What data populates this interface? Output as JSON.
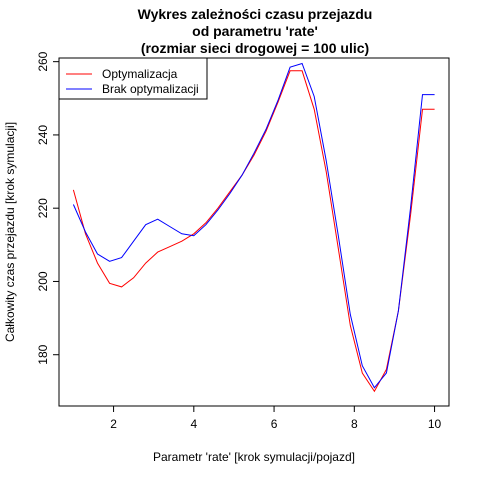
{
  "chart_data": {
    "type": "line",
    "title": [
      "Wykres zależności czasu przejazdu",
      "od parametru 'rate'",
      "(rozmiar sieci drogowej = 100 ulic)"
    ],
    "xlabel": "Parametr 'rate' [krok symulacji/pojazd]",
    "ylabel": "Całkowity czas przejazdu [krok symulacji]",
    "xlim": [
      0.64,
      10.36
    ],
    "ylim": [
      166,
      261
    ],
    "xticks": [
      2,
      4,
      6,
      8,
      10
    ],
    "yticks": [
      180,
      200,
      220,
      240,
      260
    ],
    "legend_position": "top-left",
    "grid": false,
    "x": [
      1.0,
      1.3,
      1.6,
      1.9,
      2.2,
      2.5,
      2.8,
      3.1,
      3.4,
      3.7,
      4.0,
      4.3,
      4.6,
      4.9,
      5.2,
      5.5,
      5.8,
      6.1,
      6.4,
      6.7,
      7.0,
      7.3,
      7.6,
      7.9,
      8.2,
      8.5,
      8.8,
      9.1,
      9.4,
      9.7,
      10.0
    ],
    "series": [
      {
        "name": "Optymalizacja",
        "color": "#ff0000",
        "values": [
          225,
          213,
          205,
          199.5,
          198.5,
          201,
          205,
          208,
          209.5,
          211,
          213,
          216,
          220,
          224.5,
          229,
          234.5,
          241,
          249,
          257.5,
          257.5,
          247,
          230,
          209,
          188,
          175,
          170,
          176,
          192,
          218,
          247,
          247
        ]
      },
      {
        "name": "Brak optymalizacji",
        "color": "#0000ff",
        "values": [
          221,
          213.5,
          207.5,
          205.5,
          206.5,
          211,
          215.5,
          217,
          215,
          213,
          212.5,
          215.5,
          219.5,
          224,
          229,
          235,
          241.5,
          249.5,
          258.5,
          259.5,
          250.5,
          233,
          212.5,
          191,
          177,
          171,
          175,
          192,
          220,
          251,
          251
        ]
      }
    ]
  }
}
